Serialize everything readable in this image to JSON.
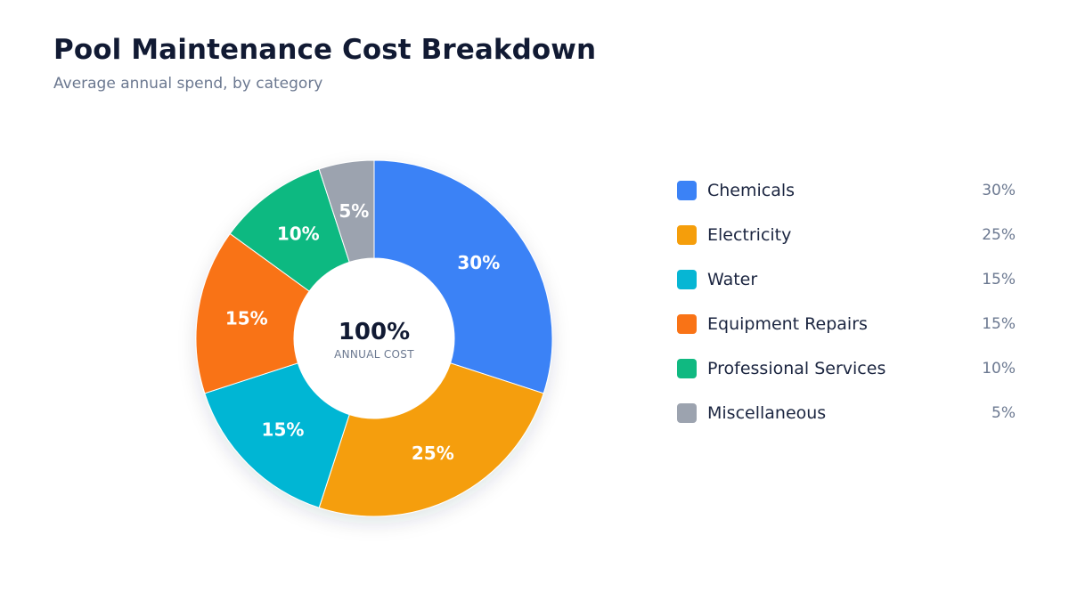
{
  "header": {
    "title": "Pool Maintenance Cost Breakdown",
    "subtitle": "Average annual spend, by category"
  },
  "center": {
    "value": "100%",
    "caption": "ANNUAL COST"
  },
  "chart_data": {
    "type": "pie",
    "title": "Pool Maintenance Cost Breakdown",
    "subtitle": "Average annual spend, by category",
    "donut": true,
    "legend_position": "right",
    "categories": [
      "Chemicals",
      "Electricity",
      "Water",
      "Equipment Repairs",
      "Professional Services",
      "Miscellaneous"
    ],
    "values": [
      30,
      25,
      15,
      15,
      10,
      5
    ],
    "labels": [
      "30%",
      "25%",
      "15%",
      "15%",
      "10%",
      "5%"
    ],
    "colors": [
      "#3b82f6",
      "#f59e0b",
      "#06b6d4",
      "#f97316",
      "#10b981",
      "#9ca3af"
    ]
  }
}
